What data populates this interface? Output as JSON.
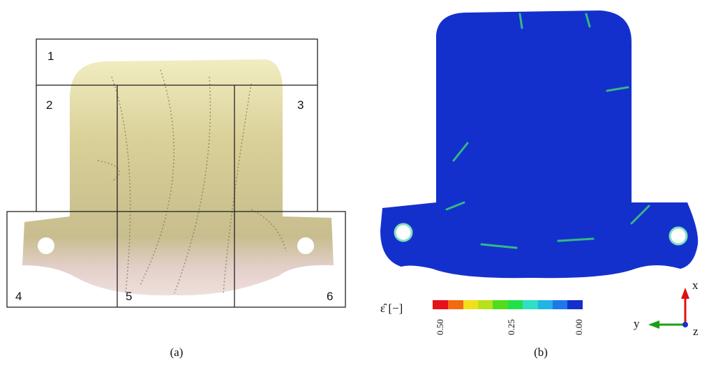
{
  "panel_a": {
    "regions": [
      "1",
      "2",
      "3",
      "4",
      "5",
      "6"
    ],
    "caption": "(a)"
  },
  "panel_b": {
    "legend_label": "ε̂ [−]",
    "colorbar_ticks": [
      "0.50",
      "0.25",
      "0.00"
    ],
    "axes": {
      "x": "x",
      "y": "y",
      "z": "z"
    },
    "caption": "(b)"
  }
}
